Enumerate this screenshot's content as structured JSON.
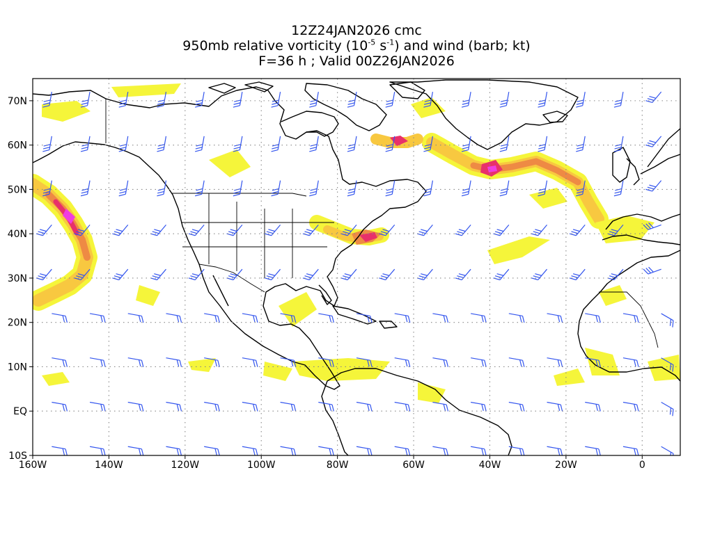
{
  "title": {
    "line1": "12Z24JAN2026 cmc",
    "line2_pre": "950mb relative vorticity (10",
    "line2_exp1": "-5",
    "line2_mid": " s",
    "line2_exp2": "-1",
    "line2_post": ") and wind (barb; kt)",
    "line3": "F=36 h ; Valid 00Z26JAN2026"
  },
  "axes": {
    "lon_labels": [
      "160W",
      "140W",
      "120W",
      "100W",
      "80W",
      "60W",
      "40W",
      "20W",
      "0"
    ],
    "lat_labels": [
      "70N",
      "60N",
      "50N",
      "40N",
      "30N",
      "20N",
      "10N",
      "EQ",
      "10S"
    ],
    "lon_range": [
      -160,
      10
    ],
    "lat_range": [
      -10,
      75
    ],
    "grid": "dotted"
  },
  "colors": {
    "shade_light": "#f5f53a",
    "shade_mid": "#f8c840",
    "shade_strong": "#ee8a44",
    "shade_high": "#e8306a",
    "shade_peak": "#f03ce0",
    "coast": "#000000",
    "barb": "#3355ee"
  }
}
